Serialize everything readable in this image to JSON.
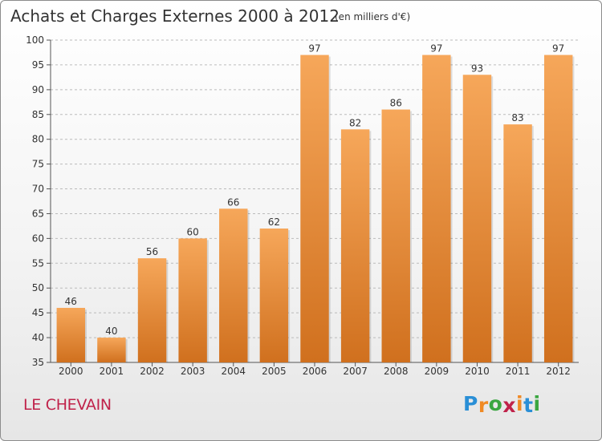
{
  "title": "Achats et Charges Externes 2000 à 2012",
  "subtitle": "(en milliers d'€)",
  "commune": "LE CHEVAIN",
  "logo": {
    "letters": [
      "P",
      "r",
      "o",
      "x",
      "i",
      "t",
      "i"
    ],
    "colors": [
      "#2a8fd6",
      "#f08a24",
      "#3aa640",
      "#c0224a",
      "#f08a24",
      "#2a8fd6",
      "#3aa640"
    ]
  },
  "colors": {
    "bar_light": "#f6a75a",
    "bar_dark": "#d0701e",
    "axis": "#555555",
    "grid": "#bbbbbb"
  },
  "chart_data": {
    "type": "bar",
    "title": "Achats et Charges Externes 2000 à 2012",
    "subtitle": "(en milliers d'€)",
    "categories": [
      "2000",
      "2001",
      "2002",
      "2003",
      "2004",
      "2005",
      "2006",
      "2007",
      "2008",
      "2009",
      "2010",
      "2011",
      "2012"
    ],
    "values": [
      46,
      40,
      56,
      60,
      66,
      62,
      97,
      82,
      86,
      97,
      93,
      83,
      97
    ],
    "ylim": [
      35,
      100
    ],
    "yticks": [
      35,
      40,
      45,
      50,
      55,
      60,
      65,
      70,
      75,
      80,
      85,
      90,
      95,
      100
    ],
    "xlabel": "",
    "ylabel": "",
    "grid": true,
    "legend": "none"
  }
}
